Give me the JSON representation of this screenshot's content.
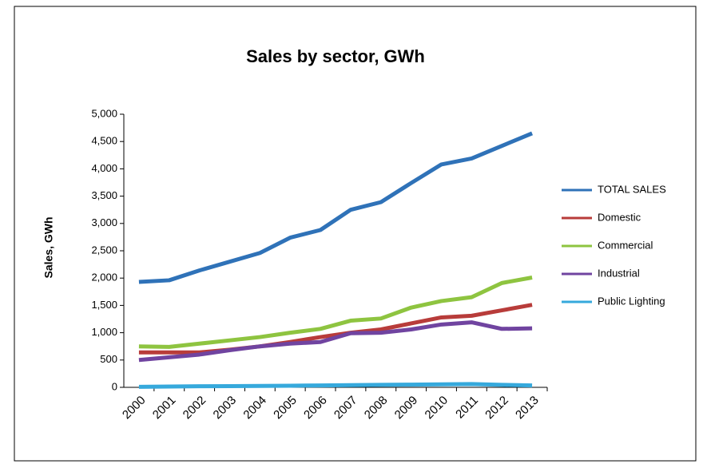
{
  "chart_data": {
    "type": "line",
    "title": "Sales by sector, GWh",
    "y_label": "Sales, GWh",
    "categories": [
      "2000",
      "2001",
      "2002",
      "2003",
      "2004",
      "2005",
      "2006",
      "2007",
      "2008",
      "2009",
      "2010",
      "2011",
      "2012",
      "2013"
    ],
    "series": [
      {
        "name": "TOTAL SALES",
        "color": "#2f72b8",
        "values": [
          1930,
          1960,
          2140,
          2300,
          2460,
          2740,
          2880,
          3250,
          3390,
          3740,
          4080,
          4190,
          4420,
          4650
        ]
      },
      {
        "name": "Domestic",
        "color": "#b83c3a",
        "values": [
          640,
          640,
          640,
          690,
          750,
          830,
          920,
          1000,
          1060,
          1170,
          1280,
          1310,
          1410,
          1510
        ]
      },
      {
        "name": "Commercial",
        "color": "#8ec440",
        "values": [
          750,
          740,
          800,
          860,
          920,
          1000,
          1070,
          1220,
          1260,
          1460,
          1580,
          1650,
          1910,
          2010
        ]
      },
      {
        "name": "Industrial",
        "color": "#7044a0",
        "values": [
          500,
          550,
          600,
          680,
          750,
          800,
          830,
          990,
          1000,
          1060,
          1150,
          1190,
          1070,
          1080
        ]
      },
      {
        "name": "Public Lighting",
        "color": "#36a9dc",
        "values": [
          10,
          15,
          20,
          22,
          25,
          30,
          35,
          40,
          45,
          50,
          55,
          60,
          45,
          35
        ]
      }
    ],
    "ylim": [
      0,
      5000
    ],
    "yticks": [
      0,
      500,
      {
        "value": 1000,
        "label": "1,000"
      },
      {
        "value": 1500,
        "label": "1,500"
      },
      {
        "value": 2000,
        "label": "2,000"
      },
      {
        "value": 2500,
        "label": "2,500"
      },
      {
        "value": 3000,
        "label": "3,000"
      },
      {
        "value": 3500,
        "label": "3,500"
      },
      {
        "value": 4000,
        "label": "4,000"
      },
      {
        "value": 4500,
        "label": "4,500"
      },
      {
        "value": 5000,
        "label": "5,000"
      }
    ],
    "legend": "right"
  }
}
